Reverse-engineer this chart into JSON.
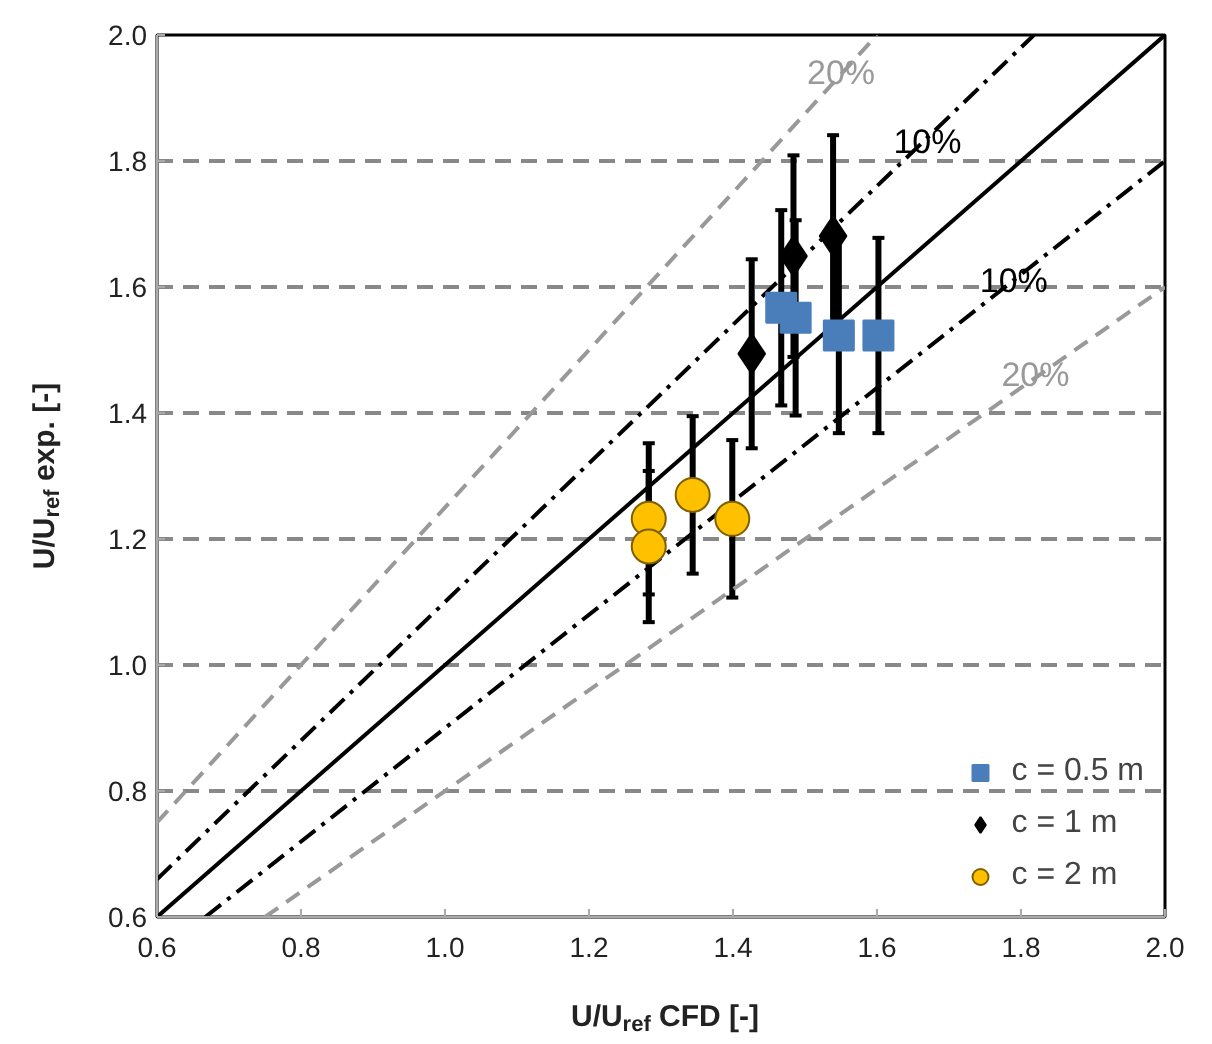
{
  "chart_data": {
    "type": "scatter",
    "xlabel": "U/U$_{ref}$ CFD [-]",
    "ylabel": "U/U$_{ref}$ exp. [-]",
    "xlim": [
      0.6,
      2.0
    ],
    "ylim": [
      0.6,
      2.0
    ],
    "xticks": [
      {
        "value": 0.6,
        "label": "0.6"
      },
      {
        "value": 0.8,
        "label": "0.8"
      },
      {
        "value": 1.0,
        "label": "1.0"
      },
      {
        "value": 1.2,
        "label": "1.2"
      },
      {
        "value": 1.4,
        "label": "1.4"
      },
      {
        "value": 1.6,
        "label": "1.6"
      },
      {
        "value": 1.8,
        "label": "1.8"
      },
      {
        "value": 2.0,
        "label": "2.0"
      }
    ],
    "yticks": [
      {
        "value": 0.6,
        "label": "0.6"
      },
      {
        "value": 0.8,
        "label": "0.8"
      },
      {
        "value": 1.0,
        "label": "1.0"
      },
      {
        "value": 1.2,
        "label": "1.2"
      },
      {
        "value": 1.4,
        "label": "1.4"
      },
      {
        "value": 1.6,
        "label": "1.6"
      },
      {
        "value": 1.8,
        "label": "1.8"
      },
      {
        "value": 2.0,
        "label": "2.0"
      }
    ],
    "grid": "y",
    "legend": "bottom right",
    "series": [
      {
        "type": "line",
        "color": "#000000",
        "line_style": "solid",
        "x": [
          0.6,
          2.0
        ],
        "values": [
          0.6,
          2.0
        ]
      },
      {
        "type": "line",
        "color": "#000000",
        "line_style": "dashdot",
        "x": [
          0.6,
          1.818
        ],
        "values": [
          0.66,
          2.0
        ]
      },
      {
        "type": "line",
        "color": "#000000",
        "line_style": "dashdot",
        "x": [
          0.667,
          2.0
        ],
        "values": [
          0.6,
          1.8
        ]
      },
      {
        "type": "line",
        "color": "#999999",
        "line_style": "dashed",
        "x": [
          0.6,
          1.6
        ],
        "values": [
          0.75,
          2.0
        ]
      },
      {
        "type": "line",
        "color": "#999999",
        "line_style": "dashed",
        "x": [
          0.75,
          2.0
        ],
        "values": [
          0.6,
          1.6
        ]
      },
      {
        "name": "c = 0.5 m",
        "color": "#4a7ebb",
        "marker": "square",
        "x": [
          1.467,
          1.487,
          1.547,
          1.602
        ],
        "values": [
          1.567,
          1.551,
          1.523,
          1.523
        ],
        "errors": [
          0.155,
          0.155,
          0.155,
          0.155
        ]
      },
      {
        "name": "c = 1 m",
        "color": "#000000",
        "marker": "diamond",
        "x": [
          1.426,
          1.484,
          1.539
        ],
        "values": [
          1.494,
          1.649,
          1.681
        ],
        "errors": [
          0.15,
          0.16,
          0.16
        ]
      },
      {
        "name": "c = 2 m",
        "color": "#ffc000",
        "marker": "circle",
        "x": [
          1.283,
          1.283,
          1.344,
          1.399
        ],
        "values": [
          1.232,
          1.188,
          1.27,
          1.232
        ],
        "errors": [
          0.12,
          0.12,
          0.125,
          0.125
        ]
      }
    ],
    "annotations": [
      {
        "text": "20%",
        "x": 1.55,
        "y": 1.94
      },
      {
        "text": "10%",
        "x": 1.67,
        "y": 1.83
      },
      {
        "text": "10%",
        "x": 1.79,
        "y": 1.61
      },
      {
        "text": "20%",
        "x": 1.82,
        "y": 1.46
      }
    ]
  }
}
